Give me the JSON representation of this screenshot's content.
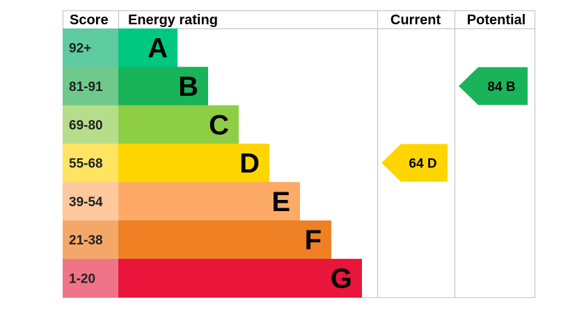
{
  "chart_data": {
    "type": "bar",
    "headers": {
      "score": "Score",
      "rating": "Energy rating",
      "current": "Current",
      "potential": "Potential"
    },
    "bands": [
      {
        "score": "92+",
        "letter": "A",
        "color": "#00c781",
        "score_bg": "#5fcba0"
      },
      {
        "score": "81-91",
        "letter": "B",
        "color": "#19b459",
        "score_bg": "#6ec98b"
      },
      {
        "score": "69-80",
        "letter": "C",
        "color": "#8dce46",
        "score_bg": "#b6de8a"
      },
      {
        "score": "55-68",
        "letter": "D",
        "color": "#ffd500",
        "score_bg": "#ffe461"
      },
      {
        "score": "39-54",
        "letter": "E",
        "color": "#fcaa65",
        "score_bg": "#fdc89c"
      },
      {
        "score": "21-38",
        "letter": "F",
        "color": "#ef8023",
        "score_bg": "#f3a86a"
      },
      {
        "score": "1-20",
        "letter": "G",
        "color": "#e9153b",
        "score_bg": "#f07487"
      }
    ],
    "current": {
      "value": 64,
      "letter": "D",
      "label": "64  D",
      "color": "#ffd500"
    },
    "potential": {
      "value": 84,
      "letter": "B",
      "label": "84  B",
      "color": "#19b459"
    }
  }
}
